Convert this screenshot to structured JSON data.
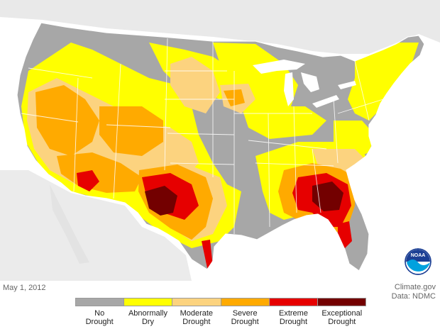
{
  "map": {
    "date": "May 1, 2012",
    "credit_line1": "Climate.gov",
    "credit_line2": "Data: NDMC",
    "logo_text": "NOAA"
  },
  "legend": [
    {
      "line1": "No",
      "line2": "Drought",
      "color": "#a7a7a7"
    },
    {
      "line1": "Abnormally",
      "line2": "Dry",
      "color": "#ffff00"
    },
    {
      "line1": "Moderate",
      "line2": "Drought",
      "color": "#fcd37f"
    },
    {
      "line1": "Severe",
      "line2": "Drought",
      "color": "#ffaa00"
    },
    {
      "line1": "Extreme",
      "line2": "Drought",
      "color": "#e60000"
    },
    {
      "line1": "Exceptional",
      "line2": "Drought",
      "color": "#730000"
    }
  ],
  "colors": {
    "land_background": "#e8e8e8",
    "water": "#ffffff",
    "borders": "#7f7f7f"
  }
}
